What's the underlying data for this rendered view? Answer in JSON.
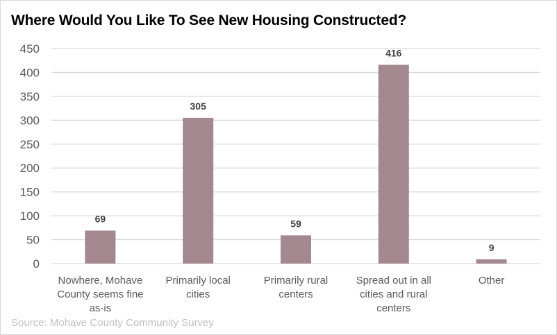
{
  "chart_data": {
    "type": "bar",
    "title": "Where Would You Like To See New Housing Constructed?",
    "categories": [
      [
        "Nowhere, Mohave",
        "County seems fine",
        "as-is"
      ],
      [
        "Primarily local",
        "cities"
      ],
      [
        "Primarily rural",
        "centers"
      ],
      [
        "Spread out in all",
        "cities and rural",
        "centers"
      ],
      [
        "Other"
      ]
    ],
    "values": [
      69,
      305,
      59,
      416,
      9
    ],
    "data_labels": [
      "69",
      "305",
      "59",
      "416",
      "9"
    ],
    "xlabel": "",
    "ylabel": "",
    "ylim": [
      0,
      450
    ],
    "yticks": [
      0,
      50,
      100,
      150,
      200,
      250,
      300,
      350,
      400,
      450
    ],
    "grid": true,
    "legend": "none",
    "bar_color": "#a3888f",
    "source": "Source: Mohave County Community Survey"
  }
}
